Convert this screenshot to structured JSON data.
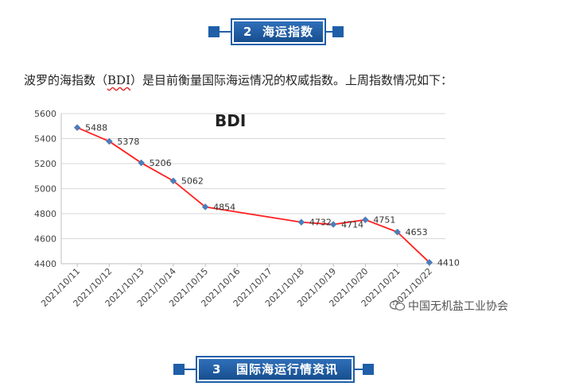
{
  "sections": {
    "prev": {
      "number": "2",
      "title": "海运指数"
    },
    "next": {
      "number": "3",
      "title": "国际海运行情资讯"
    }
  },
  "intro": {
    "before": "波罗的海指数（",
    "abbr": "BDI",
    "after": "）是目前衡量国际海运情况的权威指数。上周指数情况如下："
  },
  "watermark": {
    "text": "中国无机盐工业协会",
    "icon": "wechat-icon"
  },
  "colors": {
    "banner": "#1f5fa8",
    "line": "#ff2020",
    "marker": "#4a7ebb"
  },
  "chart_data": {
    "type": "line",
    "title": "BDI",
    "categories": [
      "2021/10/11",
      "2021/10/12",
      "2021/10/13",
      "2021/10/14",
      "2021/10/15",
      "2021/10/16",
      "2021/10/17",
      "2021/10/18",
      "2021/10/19",
      "2021/10/20",
      "2021/10/21",
      "2021/10/22"
    ],
    "points": [
      {
        "x": "2021/10/11",
        "y": 5488,
        "label": "5488"
      },
      {
        "x": "2021/10/12",
        "y": 5378,
        "label": "5378"
      },
      {
        "x": "2021/10/13",
        "y": 5206,
        "label": "5206"
      },
      {
        "x": "2021/10/14",
        "y": 5062,
        "label": "5062"
      },
      {
        "x": "2021/10/15",
        "y": 4854,
        "label": "4854"
      },
      {
        "x": "2021/10/18",
        "y": 4732,
        "label": "4732"
      },
      {
        "x": "2021/10/19",
        "y": 4714,
        "label": "4714"
      },
      {
        "x": "2021/10/20",
        "y": 4751,
        "label": "4751"
      },
      {
        "x": "2021/10/21",
        "y": 4653,
        "label": "4653"
      },
      {
        "x": "2021/10/22",
        "y": 4410,
        "label": "4410"
      }
    ],
    "yticks": [
      "4400",
      "4600",
      "4800",
      "5000",
      "5200",
      "5400",
      "5600"
    ],
    "ylim": [
      4400,
      5600
    ],
    "grid": true,
    "legend": "none"
  }
}
